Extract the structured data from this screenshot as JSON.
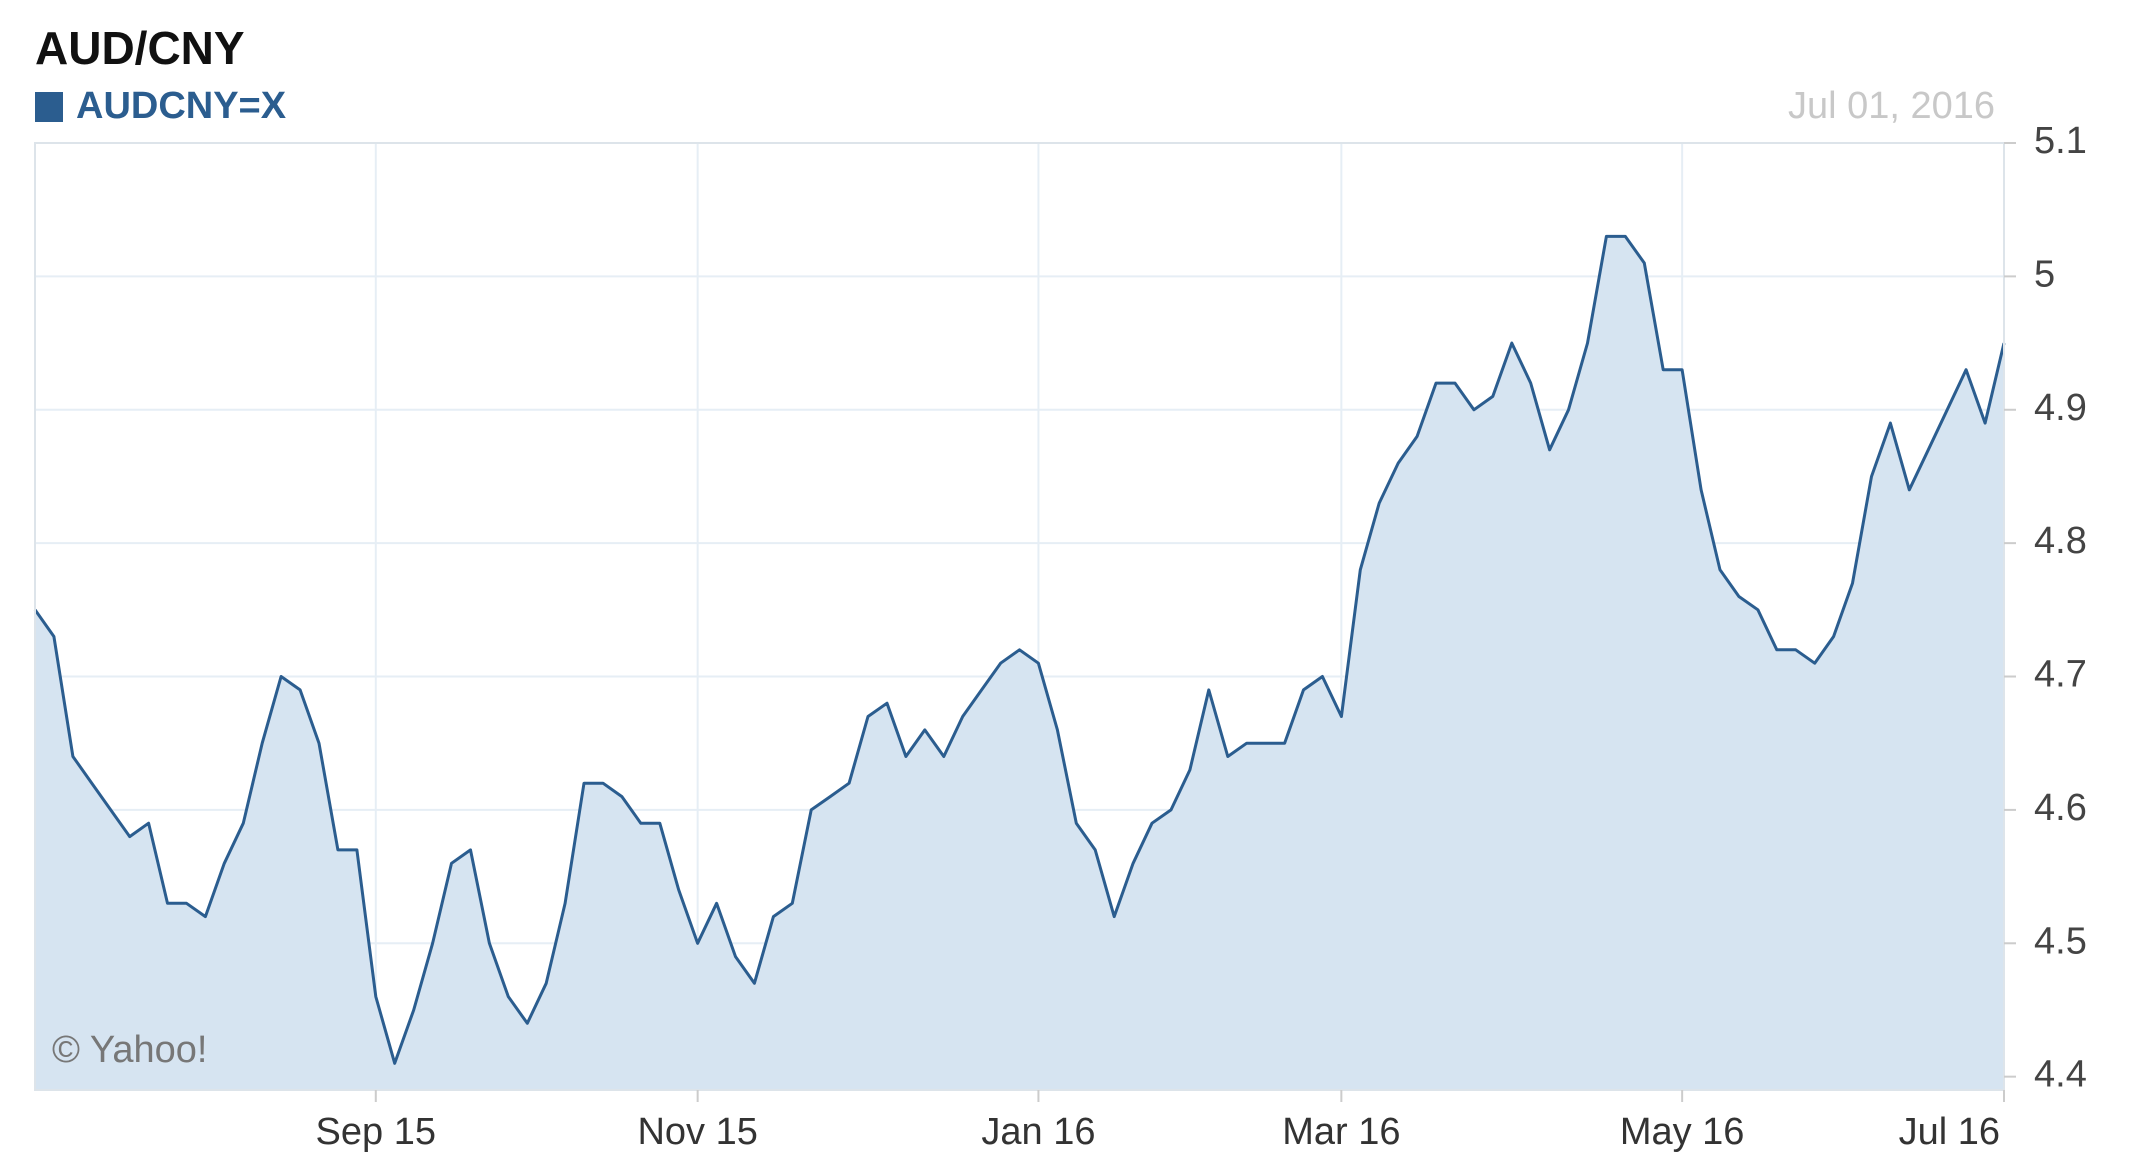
{
  "chart_data": {
    "type": "area",
    "title": "AUD/CNY",
    "date_label": "Jul 01, 2016",
    "credit": "© Yahoo!",
    "categories": [
      null,
      null,
      null,
      null,
      null,
      null,
      null,
      null,
      null,
      null,
      null,
      null,
      null,
      null,
      null,
      null,
      null,
      null,
      "Sep 15",
      null,
      null,
      null,
      null,
      null,
      null,
      null,
      null,
      null,
      null,
      null,
      null,
      null,
      null,
      null,
      null,
      "Nov 15",
      null,
      null,
      null,
      null,
      null,
      null,
      null,
      null,
      null,
      null,
      null,
      null,
      null,
      null,
      null,
      null,
      null,
      "Jan 16",
      null,
      null,
      null,
      null,
      null,
      null,
      null,
      null,
      null,
      null,
      null,
      null,
      null,
      null,
      null,
      "Mar 16",
      null,
      null,
      null,
      null,
      null,
      null,
      null,
      null,
      null,
      null,
      null,
      null,
      null,
      null,
      null,
      null,
      null,
      "May 16",
      null,
      null,
      null,
      null,
      null,
      null,
      null,
      null,
      null,
      null,
      null,
      null,
      null,
      null,
      null,
      null,
      "Jul 16"
    ],
    "series": [
      {
        "name": "AUDCNY=X",
        "color": "#2b5d8f",
        "fill": "#d6e4f1",
        "values": [
          4.75,
          4.73,
          4.64,
          4.62,
          4.6,
          4.58,
          4.59,
          4.53,
          4.53,
          4.52,
          4.56,
          4.59,
          4.65,
          4.7,
          4.69,
          4.65,
          4.57,
          4.57,
          4.46,
          4.41,
          4.45,
          4.5,
          4.56,
          4.57,
          4.5,
          4.46,
          4.44,
          4.47,
          4.53,
          4.62,
          4.62,
          4.61,
          4.59,
          4.59,
          4.54,
          4.5,
          4.53,
          4.49,
          4.47,
          4.52,
          4.53,
          4.6,
          4.61,
          4.62,
          4.67,
          4.68,
          4.64,
          4.66,
          4.64,
          4.67,
          4.69,
          4.71,
          4.72,
          4.71,
          4.66,
          4.59,
          4.57,
          4.52,
          4.56,
          4.59,
          4.6,
          4.63,
          4.69,
          4.64,
          4.65,
          4.65,
          4.65,
          4.69,
          4.7,
          4.67,
          4.78,
          4.83,
          4.86,
          4.88,
          4.92,
          4.92,
          4.9,
          4.91,
          4.95,
          4.92,
          4.87,
          4.9,
          4.95,
          5.03,
          5.03,
          5.01,
          4.93,
          4.93,
          4.84,
          4.78,
          4.76,
          4.75,
          4.72,
          4.72,
          4.71,
          4.73,
          4.77,
          4.85,
          4.89,
          4.84,
          4.87,
          4.9,
          4.93,
          4.89,
          4.95
        ]
      }
    ],
    "ylim": [
      4.39,
      5.1
    ],
    "yticks": [
      4.4,
      4.5,
      4.6,
      4.7,
      4.8,
      4.9,
      5.0,
      5.1
    ],
    "grid": true
  }
}
